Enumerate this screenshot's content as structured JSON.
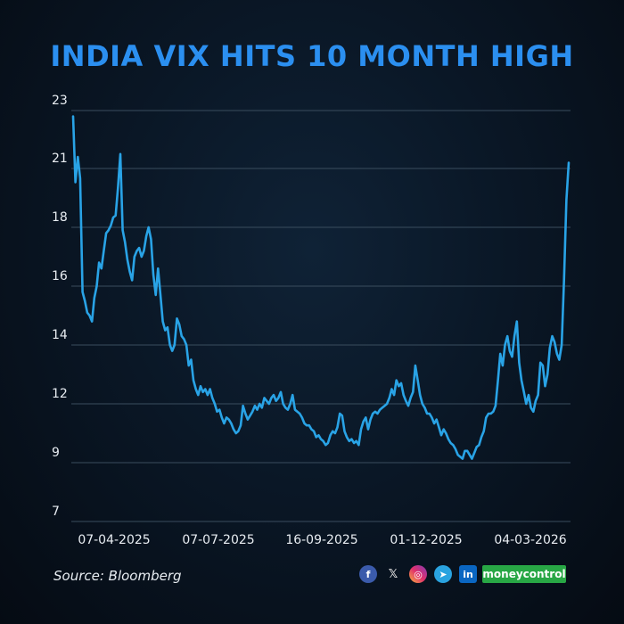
{
  "header": {
    "title": "INDIA VIX HITS 10 MONTH HIGH"
  },
  "footer": {
    "source": "Source: Bloomberg",
    "brand": "moneycontrol",
    "brand_color": "#28a745",
    "social_icons": [
      "facebook-icon",
      "x-icon",
      "instagram-icon",
      "telegram-icon",
      "linkedin-icon"
    ]
  },
  "chart_data": {
    "type": "line",
    "title": "INDIA VIX HITS 10 MONTH HIGH",
    "xlabel": "",
    "ylabel": "",
    "line_color": "#29a3e6",
    "y_tick_labels": [
      "7",
      "9",
      "12",
      "14",
      "16",
      "18",
      "21",
      "23"
    ],
    "x_tick_labels": [
      "07-04-2025",
      "07-07-2025",
      "16-09-2025",
      "01-12-2025",
      "04-03-2026"
    ],
    "grid": "horizontal",
    "series": [
      {
        "values": [
          22.8,
          20.3,
          21.4,
          20.5,
          15.8,
          15.5,
          15.1,
          15.0,
          14.8,
          15.6,
          16.0,
          16.8,
          16.6,
          17.2,
          17.8,
          17.9,
          18.1,
          18.5,
          18.6,
          20.0,
          21.5,
          17.9,
          17.5,
          16.9,
          16.5,
          16.2,
          17.0,
          17.2,
          17.3,
          17.0,
          17.2,
          17.7,
          18.0,
          17.6,
          16.4,
          15.7,
          16.6,
          15.7,
          14.8,
          14.5,
          14.6,
          14.0,
          13.8,
          14.0,
          14.9,
          14.7,
          14.3,
          14.2,
          14.0,
          13.3,
          13.5,
          12.8,
          12.5,
          12.3,
          12.6,
          12.4,
          12.5,
          12.3,
          12.5,
          12.2,
          12.0,
          11.6,
          11.7,
          11.3,
          11.0,
          11.3,
          11.2,
          11.0,
          10.7,
          10.5,
          10.6,
          10.9,
          11.9,
          11.5,
          11.2,
          11.4,
          11.6,
          11.9,
          11.7,
          12.0,
          11.8,
          12.2,
          12.1,
          12.0,
          12.2,
          12.3,
          12.1,
          12.2,
          12.4,
          12.0,
          11.8,
          11.7,
          12.0,
          12.3,
          11.7,
          11.6,
          11.5,
          11.3,
          11.0,
          10.9,
          10.9,
          10.7,
          10.6,
          10.3,
          10.4,
          10.2,
          10.1,
          9.9,
          10.0,
          10.4,
          10.6,
          10.5,
          10.8,
          11.5,
          11.4,
          10.6,
          10.3,
          10.1,
          10.2,
          10.0,
          10.1,
          9.9,
          10.7,
          11.1,
          11.3,
          10.7,
          11.2,
          11.5,
          11.6,
          11.5,
          11.7,
          11.8,
          11.9,
          12.0,
          12.2,
          12.5,
          12.3,
          12.8,
          12.6,
          12.7,
          12.3,
          12.1,
          11.9,
          12.2,
          12.4,
          13.3,
          12.8,
          12.3,
          12.0,
          11.8,
          11.5,
          11.5,
          11.3,
          11.0,
          11.2,
          10.8,
          10.4,
          10.7,
          10.5,
          10.2,
          10.0,
          9.9,
          9.7,
          9.4,
          9.3,
          9.2,
          9.6,
          9.6,
          9.4,
          9.2,
          9.5,
          9.8,
          9.9,
          10.3,
          10.6,
          11.3,
          11.5,
          11.5,
          11.6,
          11.9,
          12.8,
          13.7,
          13.3,
          14.0,
          14.3,
          13.8,
          13.6,
          14.3,
          14.8,
          13.4,
          12.8,
          12.4,
          12.0,
          12.3,
          11.8,
          11.6,
          12.1,
          12.3,
          13.4,
          13.3,
          12.6,
          13.0,
          13.9,
          14.3,
          14.1,
          13.7,
          13.5,
          14.0,
          16.2,
          19.4,
          21.2
        ]
      }
    ],
    "x_range_label": [
      "07-04-2025",
      "04-03-2026"
    ]
  }
}
